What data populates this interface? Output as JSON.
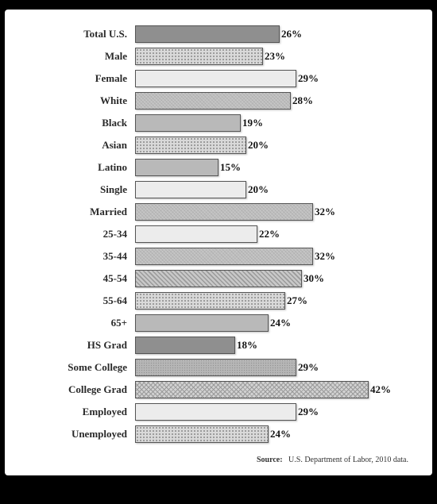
{
  "chart": {
    "type": "bar",
    "orientation": "horizontal",
    "value_suffix": "%",
    "xlim": [
      0,
      50
    ],
    "background_color": "#ffffff",
    "bar_border_color": "#555555",
    "label_fontsize": 13,
    "value_fontsize": 13,
    "font_family": "Georgia",
    "rows": [
      {
        "label": "Total U.S.",
        "value": 26,
        "fill": "dark"
      },
      {
        "label": "Male",
        "value": 23,
        "fill": "dots"
      },
      {
        "label": "Female",
        "value": 29,
        "fill": "light"
      },
      {
        "label": "White",
        "value": 28,
        "fill": "noise"
      },
      {
        "label": "Black",
        "value": 19,
        "fill": "med"
      },
      {
        "label": "Asian",
        "value": 20,
        "fill": "dots"
      },
      {
        "label": "Latino",
        "value": 15,
        "fill": "med"
      },
      {
        "label": "Single",
        "value": 20,
        "fill": "light"
      },
      {
        "label": "Married",
        "value": 32,
        "fill": "noise"
      },
      {
        "label": "25-34",
        "value": 22,
        "fill": "light"
      },
      {
        "label": "35-44",
        "value": 32,
        "fill": "noise"
      },
      {
        "label": "45-54",
        "value": 30,
        "fill": "hatch"
      },
      {
        "label": "55-64",
        "value": 27,
        "fill": "dots"
      },
      {
        "label": "65+",
        "value": 24,
        "fill": "med"
      },
      {
        "label": "HS Grad",
        "value": 18,
        "fill": "dark"
      },
      {
        "label": "Some College",
        "value": 29,
        "fill": "grain"
      },
      {
        "label": "College Grad",
        "value": 42,
        "fill": "xhatch"
      },
      {
        "label": "Employed",
        "value": 29,
        "fill": "light"
      },
      {
        "label": "Unemployed",
        "value": 24,
        "fill": "dots"
      }
    ]
  },
  "source": {
    "prefix": "Source:",
    "text": "U.S. Department of Labor, 2010 data."
  }
}
